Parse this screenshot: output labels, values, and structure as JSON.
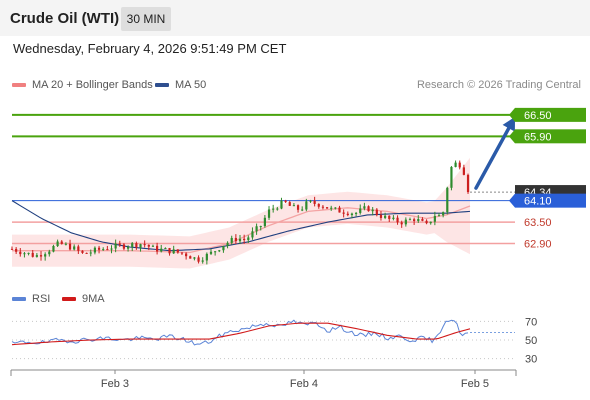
{
  "header": {
    "title": "Crude Oil (WTI)",
    "timeframe": "30 MIN",
    "datetime": "Wednesday, February 4, 2026 9:51:49 PM CET"
  },
  "legend": {
    "items": [
      {
        "label": "MA 20 + Bollinger Bands",
        "color": "#f08080"
      },
      {
        "label": "MA 50",
        "color": "#2f4f8f"
      }
    ],
    "credit": "Research © 2026 Trading Central"
  },
  "colors": {
    "bull": "#2e8b2e",
    "bear": "#cc1f1f",
    "resistance": "#4aa30e",
    "support": "#f3a0a0",
    "pivot": "#2a5fd8",
    "band_fill": "#fde0e0",
    "ma20": "#f4a4a4",
    "ma50": "#1f3f7f",
    "rsi": "#5b84d6",
    "rsi_ma": "#d11a1a",
    "arrow": "#2a5aa8"
  },
  "chart_data": [
    {
      "type": "candlestick",
      "title": "Crude Oil (WTI)",
      "xlabel": "",
      "ylabel": "",
      "ylim": [
        61.6,
        67.0
      ],
      "x_ticks": [
        "Feb 3",
        "Feb 4",
        "Feb 5"
      ],
      "price_path": [
        [
          0,
          62.75
        ],
        [
          6,
          62.65
        ],
        [
          12,
          62.55
        ],
        [
          18,
          62.7
        ],
        [
          24,
          62.9
        ],
        [
          30,
          62.8
        ],
        [
          36,
          62.6
        ],
        [
          42,
          62.7
        ],
        [
          50,
          62.8
        ],
        [
          58,
          62.85
        ],
        [
          66,
          62.9
        ],
        [
          72,
          62.75
        ],
        [
          80,
          62.7
        ],
        [
          88,
          62.6
        ],
        [
          94,
          62.45
        ],
        [
          100,
          62.6
        ],
        [
          104,
          62.75
        ],
        [
          108,
          62.9
        ],
        [
          114,
          63.05
        ],
        [
          118,
          63.0
        ],
        [
          122,
          63.2
        ],
        [
          126,
          63.4
        ],
        [
          130,
          63.8
        ],
        [
          134,
          63.95
        ],
        [
          138,
          64.05
        ],
        [
          142,
          63.9
        ],
        [
          146,
          63.85
        ],
        [
          150,
          64.05
        ],
        [
          156,
          64.0
        ],
        [
          162,
          63.85
        ],
        [
          168,
          63.8
        ],
        [
          174,
          63.75
        ],
        [
          180,
          63.9
        ],
        [
          186,
          63.7
        ],
        [
          192,
          63.55
        ],
        [
          198,
          63.5
        ],
        [
          204,
          63.6
        ],
        [
          210,
          63.4
        ],
        [
          214,
          63.7
        ],
        [
          218,
          63.65
        ],
        [
          222,
          65.0
        ],
        [
          226,
          65.2
        ],
        [
          230,
          64.8
        ],
        [
          232,
          64.34
        ]
      ],
      "current_price": 64.34,
      "ma20_path": [
        [
          0,
          62.7
        ],
        [
          30,
          62.7
        ],
        [
          60,
          62.7
        ],
        [
          90,
          62.65
        ],
        [
          110,
          62.9
        ],
        [
          130,
          63.4
        ],
        [
          150,
          63.8
        ],
        [
          170,
          63.9
        ],
        [
          190,
          63.8
        ],
        [
          210,
          63.6
        ],
        [
          220,
          63.7
        ],
        [
          232,
          63.95
        ]
      ],
      "ma50_path": [
        [
          0,
          64.1
        ],
        [
          15,
          63.6
        ],
        [
          30,
          63.2
        ],
        [
          45,
          62.95
        ],
        [
          60,
          62.8
        ],
        [
          80,
          62.7
        ],
        [
          100,
          62.75
        ],
        [
          120,
          62.95
        ],
        [
          140,
          63.25
        ],
        [
          160,
          63.5
        ],
        [
          180,
          63.7
        ],
        [
          200,
          63.75
        ],
        [
          220,
          63.75
        ],
        [
          232,
          63.8
        ]
      ],
      "bollinger_width": 0.45,
      "levels": [
        {
          "value": 66.5,
          "label": "66.50",
          "kind": "resistance"
        },
        {
          "value": 65.9,
          "label": "65.90",
          "kind": "resistance"
        },
        {
          "value": 64.34,
          "label": "64.34",
          "kind": "current"
        },
        {
          "value": 64.1,
          "label": "64.10",
          "kind": "pivot"
        },
        {
          "value": 63.5,
          "label": "63.50",
          "kind": "support"
        },
        {
          "value": 62.9,
          "label": "62.90",
          "kind": "support"
        }
      ],
      "arrow": {
        "from": [
          232,
          64.34
        ],
        "to": [
          244,
          66.5
        ]
      }
    },
    {
      "type": "line",
      "title": "",
      "ylim": [
        20,
        80
      ],
      "y_ticks": [
        70,
        50,
        30
      ],
      "series": [
        {
          "name": "RSI",
          "values": [
            [
              0,
              46
            ],
            [
              8,
              48
            ],
            [
              16,
              47
            ],
            [
              24,
              50
            ],
            [
              32,
              49
            ],
            [
              40,
              51
            ],
            [
              48,
              52
            ],
            [
              56,
              50
            ],
            [
              64,
              52
            ],
            [
              72,
              51
            ],
            [
              80,
              54
            ],
            [
              88,
              50
            ],
            [
              94,
              45
            ],
            [
              100,
              48
            ],
            [
              106,
              55
            ],
            [
              112,
              60
            ],
            [
              118,
              62
            ],
            [
              124,
              66
            ],
            [
              130,
              68
            ],
            [
              136,
              64
            ],
            [
              142,
              70
            ],
            [
              148,
              66
            ],
            [
              154,
              69
            ],
            [
              160,
              60
            ],
            [
              166,
              64
            ],
            [
              172,
              58
            ],
            [
              178,
              54
            ],
            [
              184,
              58
            ],
            [
              190,
              52
            ],
            [
              196,
              54
            ],
            [
              202,
              50
            ],
            [
              208,
              52
            ],
            [
              214,
              49
            ],
            [
              220,
              72
            ],
            [
              224,
              71
            ],
            [
              228,
              55
            ],
            [
              232,
              58
            ]
          ]
        },
        {
          "name": "9MA",
          "values": [
            [
              0,
              45
            ],
            [
              20,
              48
            ],
            [
              40,
              50
            ],
            [
              60,
              51
            ],
            [
              80,
              51
            ],
            [
              100,
              51
            ],
            [
              115,
              57
            ],
            [
              130,
              65
            ],
            [
              145,
              68
            ],
            [
              160,
              68
            ],
            [
              175,
              62
            ],
            [
              190,
              55
            ],
            [
              205,
              51
            ],
            [
              215,
              51
            ],
            [
              225,
              58
            ],
            [
              232,
              62
            ]
          ]
        }
      ]
    }
  ]
}
